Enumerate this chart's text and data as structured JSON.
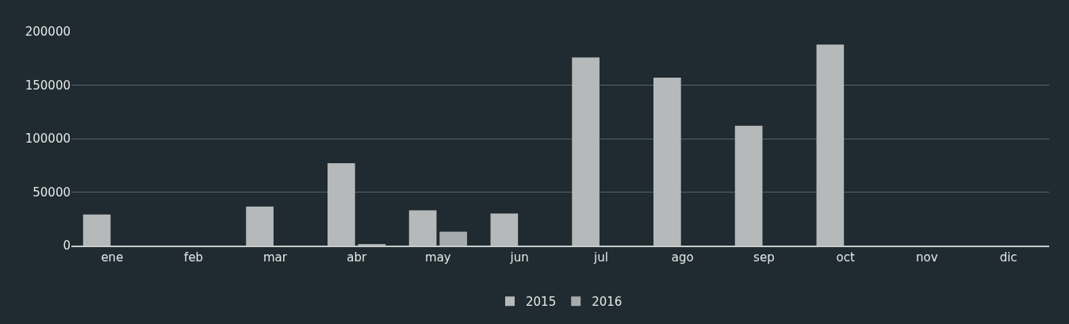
{
  "chart_data": {
    "type": "bar",
    "categories": [
      "ene",
      "feb",
      "mar",
      "abr",
      "may",
      "jun",
      "jul",
      "ago",
      "sep",
      "oct",
      "nov",
      "dic"
    ],
    "series": [
      {
        "name": "2015",
        "color": "#b5b9b9",
        "values": [
          29000,
          null,
          36500,
          77000,
          33000,
          30000,
          176000,
          157000,
          112000,
          188000,
          null,
          null
        ]
      },
      {
        "name": "2016",
        "color": "#a6abac",
        "values": [
          null,
          null,
          null,
          1000,
          13000,
          null,
          null,
          null,
          null,
          null,
          null,
          null
        ]
      }
    ],
    "ylim": [
      0,
      200000
    ],
    "yticks": [
      0,
      50000,
      100000,
      150000,
      200000
    ],
    "grid": "y",
    "legend": "bottom"
  }
}
